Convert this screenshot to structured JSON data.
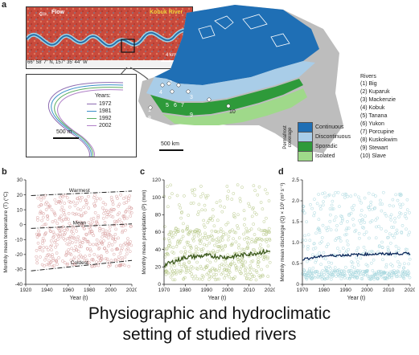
{
  "panel_a": {
    "letter": "a",
    "satellite": {
      "flow_label": "Flow",
      "river_label": "Kobuk River",
      "coords": "66° 58′ 7″ N, 157° 35′ 44″ W",
      "scale": "4 km"
    },
    "inset": {
      "years_title": "Years:",
      "years": [
        {
          "label": "1972",
          "color": "#8c6bb1"
        },
        {
          "label": "1981",
          "color": "#3a8fc9"
        },
        {
          "label": "1992",
          "color": "#5aae61"
        },
        {
          "label": "2002",
          "color": "#b07fc7"
        }
      ],
      "scale": "500 m"
    },
    "map": {
      "scale": "500 km",
      "river_numbers": [
        "1",
        "2",
        "3",
        "4",
        "5",
        "6",
        "7",
        "8",
        "9",
        "10"
      ],
      "rivers_title": "Rivers",
      "rivers": [
        "(1) Big",
        "(2) Kuparuk",
        "(3) Mackenzie",
        "(4) Kobuk",
        "(5) Tanana",
        "(6) Yukon",
        "(7) Porcupine",
        "(8) Kuskokwim",
        "(9) Stewart",
        "(10) Slave"
      ],
      "permafrost_title": "Permafrost coverage",
      "permafrost": [
        {
          "label": "Continuous",
          "color": "#1f6fb5"
        },
        {
          "label": "Discontinuous",
          "color": "#a9cde8"
        },
        {
          "label": "Sporadic",
          "color": "#2e9a3a"
        },
        {
          "label": "Isolated",
          "color": "#9fd98a"
        }
      ]
    }
  },
  "chart_data": [
    {
      "type": "scatter",
      "panel": "b",
      "xlabel": "Year (t)",
      "ylabel": "Monthly mean temperature (T) (°C)",
      "xlim": [
        1920,
        2020
      ],
      "ylim": [
        -40,
        30
      ],
      "xticks": [
        "1920",
        "1940",
        "1960",
        "1980",
        "2000",
        "2020"
      ],
      "yticks": [
        "-40",
        "-30",
        "-20",
        "-10",
        "0",
        "10",
        "20",
        "30"
      ],
      "lines": [
        {
          "name": "Warmest",
          "x": [
            1925,
            2020
          ],
          "y": [
            19.5,
            22.5
          ]
        },
        {
          "name": "Mean",
          "x": [
            1925,
            2020
          ],
          "y": [
            -2.5,
            0.5
          ]
        },
        {
          "name": "Coldest",
          "x": [
            1925,
            2020
          ],
          "y": [
            -31,
            -24
          ]
        }
      ],
      "point_color": "#d9a0a0"
    },
    {
      "type": "scatter",
      "panel": "c",
      "xlabel": "Year (t)",
      "ylabel": "Monthly mean precipitation (P) (mm)",
      "xlim": [
        1970,
        2020
      ],
      "ylim": [
        0,
        120
      ],
      "xticks": [
        "1970",
        "1980",
        "1990",
        "2000",
        "2010",
        "2020"
      ],
      "yticks": [
        "0",
        "20",
        "40",
        "60",
        "80",
        "100",
        "120"
      ],
      "trend": {
        "x": [
          1970,
          1980,
          1990,
          2000,
          2010,
          2020
        ],
        "y": [
          22,
          31,
          33,
          31,
          35,
          38
        ]
      },
      "point_color": "#b8c98a",
      "line_color": "#3d5a1e"
    },
    {
      "type": "scatter",
      "panel": "d",
      "xlabel": "Year (t)",
      "ylabel": "Monthly mean discharge (Q) × 10³ (m³ s⁻¹)",
      "xlim": [
        1970,
        2020
      ],
      "ylim": [
        0,
        2.5
      ],
      "xticks": [
        "1970",
        "1980",
        "1990",
        "2000",
        "2010",
        "2020"
      ],
      "yticks": [
        "0",
        "0.5",
        "1.0",
        "1.5",
        "2.0",
        "2.5"
      ],
      "trend": {
        "x": [
          1970,
          1980,
          1990,
          2000,
          2010,
          2020
        ],
        "y": [
          0.6,
          0.68,
          0.7,
          0.72,
          0.73,
          0.74
        ]
      },
      "point_color": "#a8d8df",
      "line_color": "#0d2a5c"
    }
  ],
  "caption": {
    "line1": "Physiographic and hydroclimatic",
    "line2": "setting of studied rivers"
  }
}
